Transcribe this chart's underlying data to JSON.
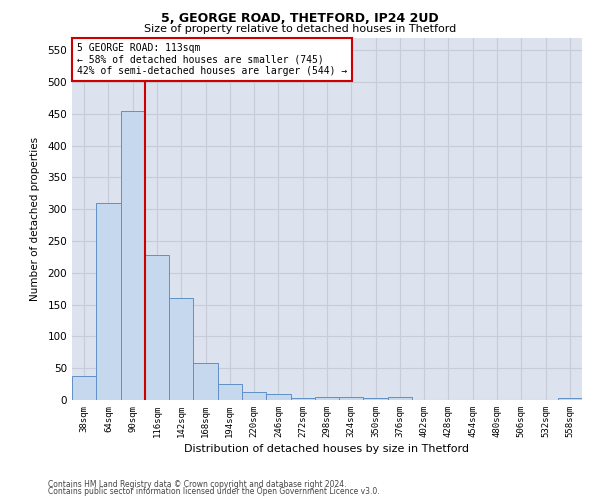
{
  "title1": "5, GEORGE ROAD, THETFORD, IP24 2UD",
  "title2": "Size of property relative to detached houses in Thetford",
  "xlabel": "Distribution of detached houses by size in Thetford",
  "ylabel": "Number of detached properties",
  "footnote1": "Contains HM Land Registry data © Crown copyright and database right 2024.",
  "footnote2": "Contains public sector information licensed under the Open Government Licence v3.0.",
  "categories": [
    "38sqm",
    "64sqm",
    "90sqm",
    "116sqm",
    "142sqm",
    "168sqm",
    "194sqm",
    "220sqm",
    "246sqm",
    "272sqm",
    "298sqm",
    "324sqm",
    "350sqm",
    "376sqm",
    "402sqm",
    "428sqm",
    "454sqm",
    "480sqm",
    "506sqm",
    "532sqm",
    "558sqm"
  ],
  "values": [
    37,
    310,
    455,
    228,
    160,
    58,
    25,
    12,
    9,
    3,
    5,
    5,
    3,
    5,
    0,
    0,
    0,
    0,
    0,
    0,
    3
  ],
  "bar_color": "#c5d8ee",
  "bar_edge_color": "#6090c8",
  "grid_color": "#c8ccd8",
  "background_color": "#dce2ee",
  "vline_color": "#cc0000",
  "vline_x_index": 2,
  "annotation_text1": "5 GEORGE ROAD: 113sqm",
  "annotation_text2": "← 58% of detached houses are smaller (745)",
  "annotation_text3": "42% of semi-detached houses are larger (544) →",
  "annotation_box_facecolor": "#ffffff",
  "annotation_box_edgecolor": "#cc0000",
  "ylim": [
    0,
    570
  ],
  "yticks": [
    0,
    50,
    100,
    150,
    200,
    250,
    300,
    350,
    400,
    450,
    500,
    550
  ]
}
